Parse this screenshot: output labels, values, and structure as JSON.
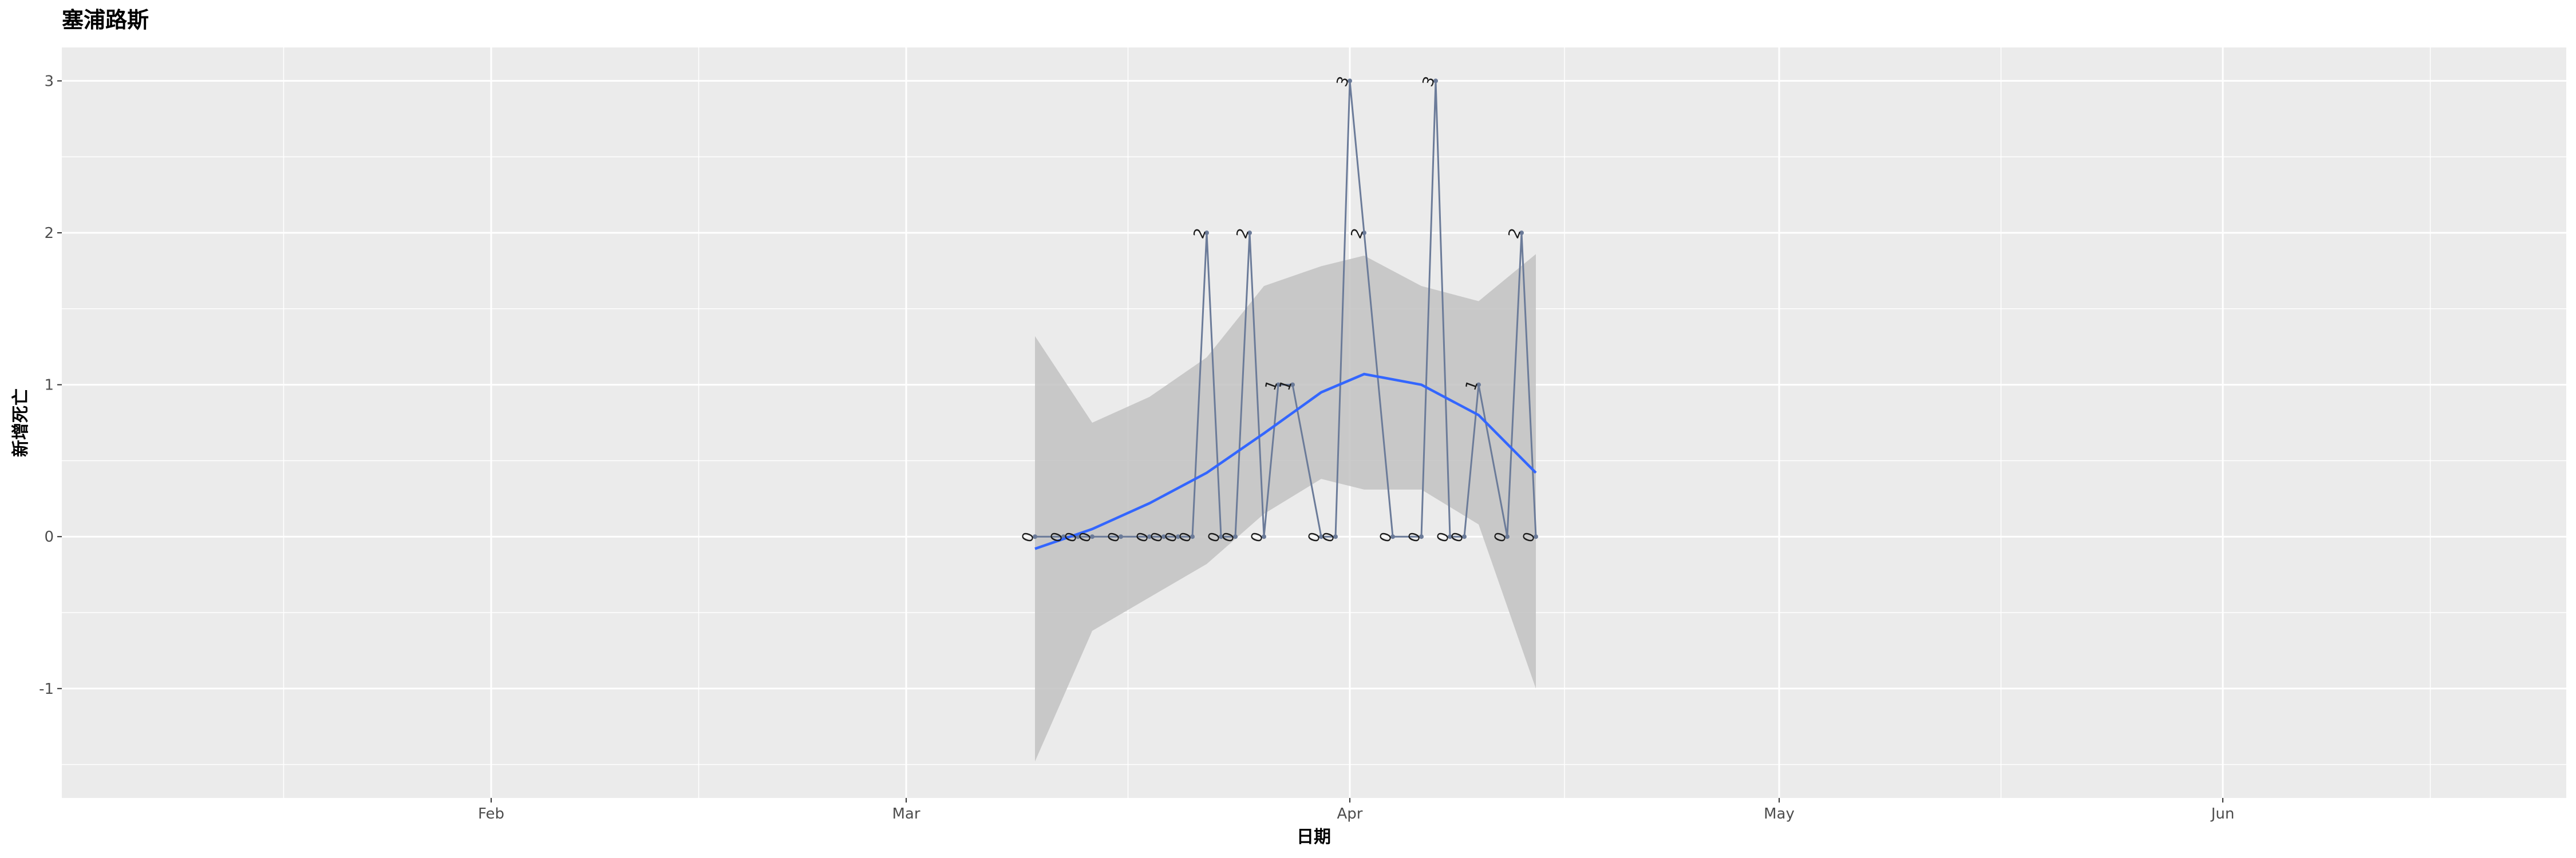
{
  "chart_data": {
    "type": "line",
    "title": "塞浦路斯",
    "xlabel": "日期",
    "ylabel": "新增死亡",
    "x_axis": {
      "type": "date",
      "range": [
        "2020-01-02",
        "2020-06-25"
      ],
      "ticks": [
        {
          "date": "2020-02-01",
          "label": "Feb"
        },
        {
          "date": "2020-03-01",
          "label": "Mar"
        },
        {
          "date": "2020-04-01",
          "label": "Apr"
        },
        {
          "date": "2020-05-01",
          "label": "May"
        },
        {
          "date": "2020-06-01",
          "label": "Jun"
        }
      ]
    },
    "y_axis": {
      "range": [
        -1.72,
        3.22
      ],
      "ticks": [
        {
          "value": -1,
          "label": "-1"
        },
        {
          "value": 0,
          "label": "0"
        },
        {
          "value": 1,
          "label": "1"
        },
        {
          "value": 2,
          "label": "2"
        },
        {
          "value": 3,
          "label": "3"
        }
      ]
    },
    "grid": true,
    "colors": {
      "panel": "#ebebeb",
      "grid": "#ffffff",
      "series_line": "#6b7b99",
      "smooth_line": "#3366ff",
      "ribbon": "#c2c2c2"
    },
    "series": [
      {
        "x": [
          "2020-03-10",
          "2020-03-12",
          "2020-03-13",
          "2020-03-14",
          "2020-03-16",
          "2020-03-18",
          "2020-03-19",
          "2020-03-20",
          "2020-03-21",
          "2020-03-22",
          "2020-03-23",
          "2020-03-24",
          "2020-03-25",
          "2020-03-26",
          "2020-03-27",
          "2020-03-28",
          "2020-03-30",
          "2020-03-31",
          "2020-04-01",
          "2020-04-02",
          "2020-04-04",
          "2020-04-06",
          "2020-04-07",
          "2020-04-08",
          "2020-04-09",
          "2020-04-10",
          "2020-04-12",
          "2020-04-13",
          "2020-04-14"
        ],
        "values": [
          0,
          0,
          0,
          0,
          0,
          0,
          0,
          0,
          0,
          2,
          0,
          0,
          2,
          0,
          1,
          1,
          0,
          0,
          3,
          2,
          0,
          0,
          3,
          0,
          0,
          1,
          0,
          2,
          0
        ]
      }
    ],
    "smooth": {
      "x": [
        "2020-03-10",
        "2020-03-14",
        "2020-03-18",
        "2020-03-22",
        "2020-03-26",
        "2020-03-30",
        "2020-04-02",
        "2020-04-06",
        "2020-04-10",
        "2020-04-14"
      ],
      "fit": [
        -0.08,
        0.05,
        0.22,
        0.42,
        0.68,
        0.95,
        1.07,
        1.0,
        0.8,
        0.42
      ],
      "lower": [
        -1.48,
        -0.62,
        -0.4,
        -0.18,
        0.15,
        0.38,
        0.31,
        0.31,
        0.08,
        -1.0
      ],
      "upper": [
        1.32,
        0.75,
        0.92,
        1.18,
        1.65,
        1.78,
        1.85,
        1.65,
        1.55,
        1.86
      ]
    }
  }
}
